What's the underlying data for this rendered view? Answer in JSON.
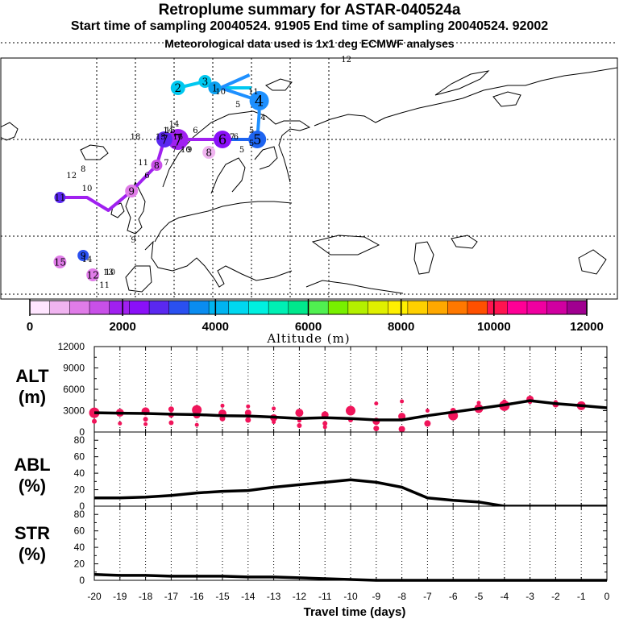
{
  "header": {
    "title": "Retroplume summary for ASTAR-040524a",
    "line2": "Start time of sampling 20040524. 91905     End time of sampling 20040524. 92002",
    "line3": "Meteorological data used is 1x1 deg ECMWF analyses"
  },
  "colorbar": {
    "colors": [
      "#ffe6ff",
      "#f0b4f0",
      "#e07ce8",
      "#c850e8",
      "#a020f0",
      "#8a10f8",
      "#5a28f0",
      "#2a50f0",
      "#0a8cf0",
      "#00b4f0",
      "#00d8f0",
      "#00f0e0",
      "#00f0b4",
      "#00e88c",
      "#50f050",
      "#78f000",
      "#b4f000",
      "#e0f000",
      "#fff000",
      "#ffd000",
      "#ffa800",
      "#ff7800",
      "#ff5000",
      "#ff1450",
      "#ff0096",
      "#f000a0",
      "#d000a0",
      "#a00090"
    ],
    "tick_labels": [
      "0",
      "2000",
      "4000",
      "6000",
      "8000",
      "10000",
      "12000"
    ],
    "label": "Altitude (m)"
  },
  "map": {
    "trajectories": [
      {
        "color": "#00c8f0",
        "points": [
          {
            "label": "2",
            "lon": -8,
            "lat": 68
          },
          {
            "label": "3",
            "lon": 6,
            "lat": 69
          },
          {
            "label": "1",
            "lon": 11,
            "lat": 68
          },
          {
            "label": "",
            "lon": 30,
            "lat": 68
          }
        ]
      },
      {
        "color": "#1e90ff",
        "points": [
          {
            "label": "16",
            "lon": 29,
            "lat": 70
          },
          {
            "label": "1",
            "lon": 14,
            "lat": 68
          },
          {
            "label": "4",
            "lon": 34,
            "lat": 66
          },
          {
            "label": "4",
            "lon": 34,
            "lat": 64
          },
          {
            "label": "5",
            "lon": 33,
            "lat": 60
          }
        ]
      },
      {
        "color": "#1e64f0",
        "points": [
          {
            "label": "6",
            "lon": 15,
            "lat": 60
          },
          {
            "label": "5",
            "lon": 33,
            "lat": 60
          }
        ]
      },
      {
        "color": "#a020f0",
        "points": [
          {
            "label": "12",
            "lon": -69,
            "lat": 51
          },
          {
            "label": "11",
            "lon": -55,
            "lat": 51
          },
          {
            "label": "10",
            "lon": -44,
            "lat": 49
          },
          {
            "label": "9",
            "lon": -32,
            "lat": 52
          },
          {
            "label": "8",
            "lon": -19,
            "lat": 56
          },
          {
            "label": "7",
            "lon": -15,
            "lat": 60
          },
          {
            "label": "7",
            "lon": -8,
            "lat": 60
          },
          {
            "label": "6",
            "lon": 15,
            "lat": 60
          }
        ]
      }
    ],
    "markers": [
      {
        "label": "2",
        "lon": -8,
        "lat": 68,
        "size": 18,
        "color": "#00c8f0"
      },
      {
        "label": "3",
        "lon": 6,
        "lat": 69,
        "size": 16,
        "color": "#00c8f0"
      },
      {
        "label": "1",
        "lon": 11,
        "lat": 68,
        "size": 16,
        "color": "#0aa0f0"
      },
      {
        "label": "4",
        "lon": 34,
        "lat": 66,
        "size": 24,
        "color": "#1e90ff"
      },
      {
        "label": "5",
        "lon": 33,
        "lat": 60,
        "size": 22,
        "color": "#1e64f0"
      },
      {
        "label": "6",
        "lon": 15,
        "lat": 60,
        "size": 22,
        "color": "#8a10f8"
      },
      {
        "label": "7",
        "lon": -8,
        "lat": 60,
        "size": 26,
        "color": "#a020f0"
      },
      {
        "label": "7",
        "lon": -15,
        "lat": 60,
        "size": 20,
        "color": "#5a28f0"
      },
      {
        "label": "8",
        "lon": -19,
        "lat": 56,
        "size": 14,
        "color": "#c850e8"
      },
      {
        "label": "8",
        "lon": 8,
        "lat": 58,
        "size": 16,
        "color": "#f0b4f0"
      },
      {
        "label": "9",
        "lon": -32,
        "lat": 52,
        "size": 16,
        "color": "#e07ce8"
      },
      {
        "label": "9",
        "lon": -57,
        "lat": 42,
        "size": 14,
        "color": "#2a50f0"
      },
      {
        "label": "11",
        "lon": -69,
        "lat": 51,
        "size": 14,
        "color": "#5a28f0"
      },
      {
        "label": "12",
        "lon": -52,
        "lat": 39,
        "size": 16,
        "color": "#e07ce8"
      },
      {
        "label": "15",
        "lon": -69,
        "lat": 41,
        "size": 16,
        "color": "#e07ce8"
      }
    ],
    "labels": [
      {
        "text": "11",
        "lon": 31,
        "lat": 67
      },
      {
        "text": "10",
        "lon": 14,
        "lat": 67
      },
      {
        "text": "5",
        "lon": 23,
        "lat": 65
      },
      {
        "text": "5",
        "lon": 30,
        "lat": 61
      },
      {
        "text": "4",
        "lon": 36,
        "lat": 63
      },
      {
        "text": "5",
        "lon": 30,
        "lat": 59
      },
      {
        "text": "7",
        "lon": 20,
        "lat": 60
      },
      {
        "text": "6",
        "lon": 22,
        "lat": 60
      },
      {
        "text": "5",
        "lon": 25,
        "lat": 58
      },
      {
        "text": "9",
        "lon": -2,
        "lat": 58
      },
      {
        "text": "10",
        "lon": -4,
        "lat": 58
      },
      {
        "text": "7",
        "lon": -10,
        "lat": 58
      },
      {
        "text": "6",
        "lon": 1,
        "lat": 61
      },
      {
        "text": "7",
        "lon": -14,
        "lat": 56
      },
      {
        "text": "13",
        "lon": -17,
        "lat": 60
      },
      {
        "text": "14",
        "lon": -13,
        "lat": 61
      },
      {
        "text": "15",
        "lon": -12,
        "lat": 61
      },
      {
        "text": "14",
        "lon": -10,
        "lat": 62
      },
      {
        "text": "16",
        "lon": -8,
        "lat": 60
      },
      {
        "text": "18",
        "lon": -30,
        "lat": 60
      },
      {
        "text": "11",
        "lon": -26,
        "lat": 56
      },
      {
        "text": "6",
        "lon": -24,
        "lat": 54
      },
      {
        "text": "8",
        "lon": -57,
        "lat": 55
      },
      {
        "text": "12",
        "lon": -63,
        "lat": 54
      },
      {
        "text": "10",
        "lon": -55,
        "lat": 52
      },
      {
        "text": "9",
        "lon": -31,
        "lat": 44
      },
      {
        "text": "14",
        "lon": -55,
        "lat": 41
      },
      {
        "text": "13",
        "lon": -44,
        "lat": 39
      },
      {
        "text": "10",
        "lon": -43,
        "lat": 39
      },
      {
        "text": "11",
        "lon": -46,
        "lat": 37
      },
      {
        "text": "20",
        "lon": -68,
        "lat": 34
      },
      {
        "text": "12",
        "lon": 79,
        "lat": 72
      }
    ]
  },
  "panels": {
    "alt": {
      "label_top": "ALT",
      "label_bottom": "(m)",
      "ticks": [
        "0",
        "3000",
        "6000",
        "9000",
        "12000"
      ]
    },
    "abl": {
      "label_top": "ABL",
      "label_bottom": "(%)",
      "ticks": [
        "0",
        "20",
        "40",
        "60",
        "80"
      ]
    },
    "str": {
      "label_top": "STR",
      "label_bottom": "(%)",
      "ticks": [
        "0",
        "20",
        "40",
        "60",
        "80"
      ]
    }
  },
  "xaxis": {
    "ticks": [
      "-20",
      "-19",
      "-18",
      "-17",
      "-16",
      "-15",
      "-14",
      "-13",
      "-12",
      "-11",
      "-10",
      "-9",
      "-8",
      "-7",
      "-6",
      "-5",
      "-4",
      "-3",
      "-2",
      "-1",
      "0"
    ],
    "label": "Travel time (days)"
  },
  "chart_data": [
    {
      "type": "line",
      "title": "ALT",
      "ylabel": "ALT (m)",
      "xlabel": "Travel time (days)",
      "ylim": [
        0,
        12000
      ],
      "x": [
        -20,
        -19,
        -18,
        -17,
        -16,
        -15,
        -14,
        -13,
        -12,
        -11,
        -10,
        -9,
        -8,
        -7,
        -6,
        -5,
        -4,
        -3,
        -2,
        -1,
        0
      ],
      "series": [
        {
          "name": "mean altitude",
          "values": [
            2700,
            2650,
            2600,
            2500,
            2450,
            2300,
            2250,
            2100,
            1900,
            2000,
            1900,
            1700,
            1700,
            2300,
            2800,
            3300,
            3800,
            4400,
            4000,
            3700,
            3400
          ]
        }
      ],
      "scatter": [
        {
          "x": -20,
          "y": 2700,
          "s": 11
        },
        {
          "x": -20,
          "y": 1500,
          "s": 4
        },
        {
          "x": -19,
          "y": 2700,
          "s": 8
        },
        {
          "x": -19,
          "y": 1200,
          "s": 3
        },
        {
          "x": -18,
          "y": 2900,
          "s": 8
        },
        {
          "x": -18,
          "y": 1800,
          "s": 4
        },
        {
          "x": -18,
          "y": 1100,
          "s": 3
        },
        {
          "x": -17,
          "y": 3200,
          "s": 5
        },
        {
          "x": -17,
          "y": 2400,
          "s": 5
        },
        {
          "x": -17,
          "y": 1300,
          "s": 4
        },
        {
          "x": -16,
          "y": 3100,
          "s": 10
        },
        {
          "x": -16,
          "y": 2400,
          "s": 7
        },
        {
          "x": -16,
          "y": 1000,
          "s": 3
        },
        {
          "x": -15,
          "y": 2600,
          "s": 8
        },
        {
          "x": -15,
          "y": 1900,
          "s": 5
        },
        {
          "x": -15,
          "y": 3700,
          "s": 3
        },
        {
          "x": -14,
          "y": 2700,
          "s": 6
        },
        {
          "x": -14,
          "y": 1700,
          "s": 5
        },
        {
          "x": -14,
          "y": 3600,
          "s": 3
        },
        {
          "x": -13,
          "y": 2000,
          "s": 7
        },
        {
          "x": -13,
          "y": 3300,
          "s": 3
        },
        {
          "x": -13,
          "y": 1400,
          "s": 3
        },
        {
          "x": -12,
          "y": 2700,
          "s": 8
        },
        {
          "x": -12,
          "y": 1600,
          "s": 3
        },
        {
          "x": -12,
          "y": 900,
          "s": 4
        },
        {
          "x": -11,
          "y": 2400,
          "s": 7
        },
        {
          "x": -11,
          "y": 1200,
          "s": 4
        },
        {
          "x": -11,
          "y": 700,
          "s": 3
        },
        {
          "x": -10,
          "y": 3000,
          "s": 10
        },
        {
          "x": -10,
          "y": 1700,
          "s": 4
        },
        {
          "x": -9,
          "y": 1500,
          "s": 7
        },
        {
          "x": -9,
          "y": 500,
          "s": 5
        },
        {
          "x": -9,
          "y": 4000,
          "s": 3
        },
        {
          "x": -8,
          "y": 2200,
          "s": 7
        },
        {
          "x": -8,
          "y": 400,
          "s": 6
        },
        {
          "x": -8,
          "y": 4300,
          "s": 3
        },
        {
          "x": -7,
          "y": 1200,
          "s": 6
        },
        {
          "x": -7,
          "y": 3000,
          "s": 3
        },
        {
          "x": -6,
          "y": 2300,
          "s": 10
        },
        {
          "x": -6,
          "y": 3000,
          "s": 5
        },
        {
          "x": -5,
          "y": 3300,
          "s": 9
        },
        {
          "x": -5,
          "y": 4100,
          "s": 3
        },
        {
          "x": -4,
          "y": 3700,
          "s": 11
        },
        {
          "x": -4,
          "y": 4300,
          "s": 3
        },
        {
          "x": -3,
          "y": 4600,
          "s": 7
        },
        {
          "x": -3,
          "y": 4200,
          "s": 3
        },
        {
          "x": -2,
          "y": 3900,
          "s": 6
        },
        {
          "x": -2,
          "y": 4200,
          "s": 3
        },
        {
          "x": -1,
          "y": 3700,
          "s": 9
        },
        {
          "x": -1,
          "y": 4000,
          "s": 3
        }
      ]
    },
    {
      "type": "line",
      "title": "ABL",
      "ylabel": "ABL (%)",
      "xlabel": "Travel time (days)",
      "ylim": [
        0,
        90
      ],
      "x": [
        -20,
        -19,
        -18,
        -17,
        -16,
        -15,
        -14,
        -13,
        -12,
        -11,
        -10,
        -9,
        -8,
        -7,
        -6,
        -5,
        -4,
        -3,
        -2,
        -1,
        0
      ],
      "series": [
        {
          "name": "ABL fraction",
          "values": [
            10,
            10,
            11,
            13,
            16,
            18,
            19,
            23,
            26,
            29,
            32,
            29,
            23,
            10,
            7,
            5,
            0,
            0,
            0,
            0,
            0
          ]
        }
      ]
    },
    {
      "type": "line",
      "title": "STR",
      "ylabel": "STR (%)",
      "xlabel": "Travel time (days)",
      "ylim": [
        0,
        90
      ],
      "x": [
        -20,
        -19,
        -18,
        -17,
        -16,
        -15,
        -14,
        -13,
        -12,
        -11,
        -10,
        -9,
        -8,
        -7,
        -6,
        -5,
        -4,
        -3,
        -2,
        -1,
        0
      ],
      "series": [
        {
          "name": "stratospheric fraction",
          "values": [
            7,
            6,
            6,
            5,
            5,
            5,
            4,
            4,
            3,
            2,
            1,
            0,
            0,
            0,
            0,
            0,
            0,
            0,
            0,
            0,
            0
          ]
        }
      ]
    }
  ]
}
